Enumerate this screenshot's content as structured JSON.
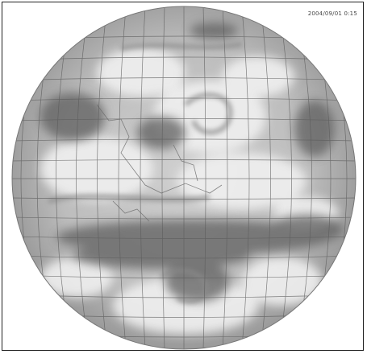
{
  "image": {
    "timestamp_label": "2004/09/01 0:15",
    "colors": {
      "frame": "#222222",
      "background": "#ffffff",
      "grid": "#5a5a5a",
      "globe_light": "#d8d8d8",
      "globe_mid": "#a4a4a4",
      "globe_dark": "#5e5e5e"
    }
  }
}
